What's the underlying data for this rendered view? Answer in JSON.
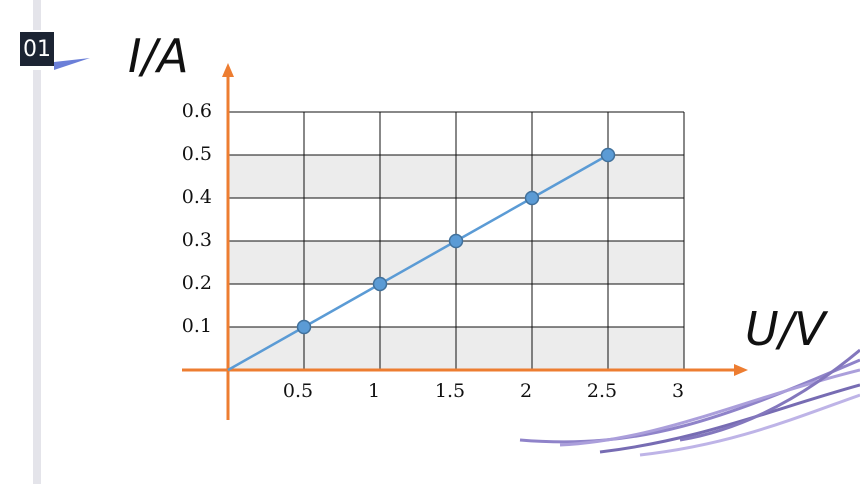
{
  "badge": "01",
  "chart_data": {
    "type": "line",
    "x_label": "U/V",
    "y_label": "I/A",
    "x": [
      0,
      0.5,
      1,
      1.5,
      2,
      2.5
    ],
    "series": [
      {
        "color": "#5b9bd5",
        "values": [
          0,
          0.1,
          0.2,
          0.3,
          0.4,
          0.5
        ]
      }
    ],
    "xlim": [
      0,
      3
    ],
    "ylim": [
      0,
      0.6
    ],
    "xticks": [
      0.5,
      1,
      1.5,
      2,
      2.5,
      3
    ],
    "yticks": [
      0.1,
      0.2,
      0.3,
      0.4,
      0.5,
      0.6
    ],
    "grid": true,
    "axis_color": "#ed7d31"
  }
}
